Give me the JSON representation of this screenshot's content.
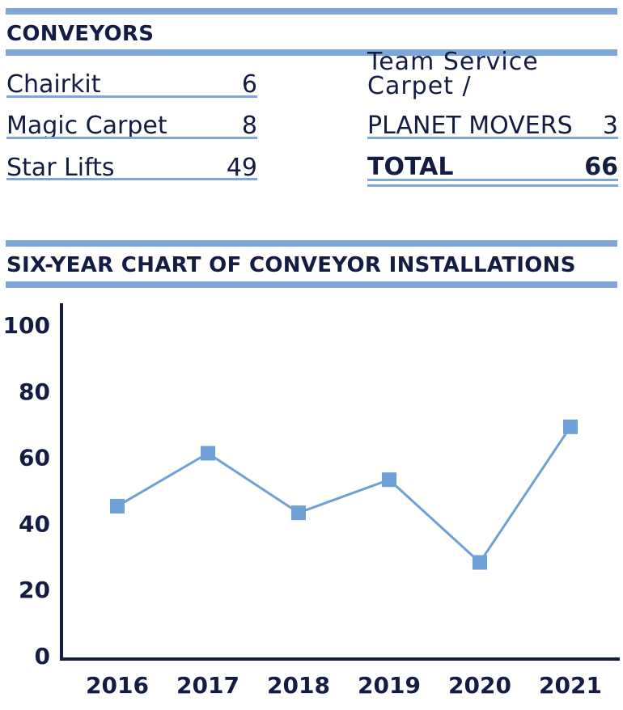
{
  "conveyors": {
    "title": "CONVEYORS",
    "left_items": [
      {
        "name": "Chairkit",
        "value": "6"
      },
      {
        "name": "Magic Carpet",
        "value": "8"
      },
      {
        "name": "Star Lifts",
        "value": "49"
      }
    ],
    "right_items": [
      {
        "name": "Team Service Carpet /",
        "value": ""
      },
      {
        "name": "PLANET MOVERS",
        "value": "3"
      }
    ],
    "total": {
      "label": "TOTAL",
      "value": "66"
    }
  },
  "colors": {
    "accent": "#7ea6d8",
    "text": "#141c44",
    "series": "#6e9fd6"
  },
  "chart_data": {
    "type": "line",
    "title": "SIX-YEAR CHART OF CONVEYOR INSTALLATIONS",
    "xlabel": "",
    "ylabel": "",
    "categories": [
      "2016",
      "2017",
      "2018",
      "2019",
      "2020",
      "2021"
    ],
    "values": [
      45,
      61,
      43,
      53,
      28,
      69
    ],
    "ylim": [
      0,
      100
    ],
    "yticks": [
      0,
      20,
      40,
      60,
      80,
      100
    ],
    "grid": false,
    "marker": "square"
  }
}
